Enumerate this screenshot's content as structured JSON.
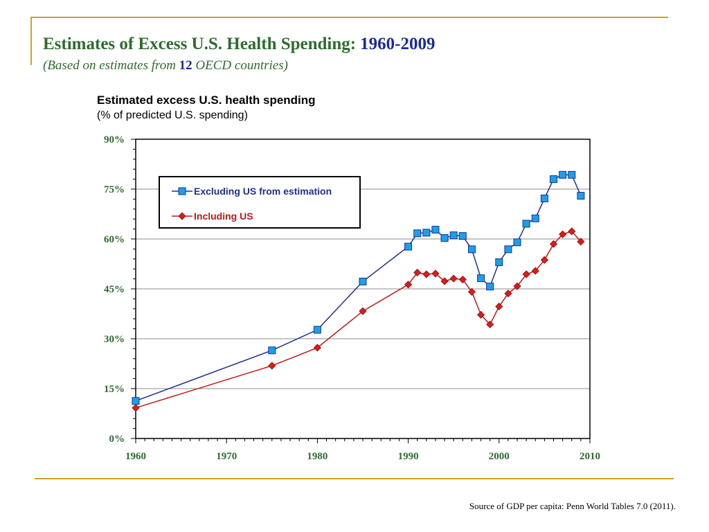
{
  "page": {
    "title": "Estimates of  Excess U.S. Health Spending:",
    "title_years": "1960-2009",
    "subtitle_pre": "(Based on estimates from ",
    "subtitle_num": "12",
    "subtitle_post": " OECD countries)",
    "source": "Source of GDP per capita: Penn World Tables 7.0 (2011)."
  },
  "chart_data": {
    "type": "line",
    "title": "Estimated excess U.S. health spending",
    "subtitle": "(% of predicted U.S. spending)",
    "xlim": [
      1960,
      2010
    ],
    "ylim": [
      0,
      90
    ],
    "x_ticks": [
      "1960",
      "1970",
      "1980",
      "1990",
      "2000",
      "2010"
    ],
    "x_tick_values": [
      1960,
      1970,
      1980,
      1990,
      2000,
      2010
    ],
    "y_ticks": [
      "0%",
      "15%",
      "30%",
      "45%",
      "60%",
      "75%",
      "90%"
    ],
    "y_tick_values": [
      0,
      15,
      30,
      45,
      60,
      75,
      90
    ],
    "grid": "horizontal",
    "legend_position": "top-left",
    "series": [
      {
        "name": "Excluding US from estimation",
        "color": "#1f2f8f",
        "marker_color": "#1aa0e8",
        "marker": "square",
        "points": [
          [
            1960,
            11.3
          ],
          [
            1975,
            26.5
          ],
          [
            1980,
            32.7
          ],
          [
            1985,
            47.2
          ],
          [
            1990,
            57.7
          ],
          [
            1991,
            61.7
          ],
          [
            1992,
            61.9
          ],
          [
            1993,
            62.8
          ],
          [
            1994,
            60.3
          ],
          [
            1995,
            61.1
          ],
          [
            1996,
            60.9
          ],
          [
            1997,
            56.9
          ],
          [
            1998,
            48.2
          ],
          [
            1999,
            45.7
          ],
          [
            2000,
            53.0
          ],
          [
            2001,
            56.9
          ],
          [
            2002,
            59.0
          ],
          [
            2003,
            64.6
          ],
          [
            2004,
            66.2
          ],
          [
            2005,
            72.2
          ],
          [
            2006,
            78.0
          ],
          [
            2007,
            79.3
          ],
          [
            2008,
            79.3
          ],
          [
            2009,
            73.0
          ]
        ]
      },
      {
        "name": "Including US",
        "color": "#c01818",
        "marker_color": "#dd1b1b",
        "marker": "diamond",
        "points": [
          [
            1960,
            9.2
          ],
          [
            1975,
            21.9
          ],
          [
            1980,
            27.3
          ],
          [
            1985,
            38.3
          ],
          [
            1990,
            46.3
          ],
          [
            1991,
            49.9
          ],
          [
            1992,
            49.4
          ],
          [
            1993,
            49.6
          ],
          [
            1994,
            47.3
          ],
          [
            1995,
            48.1
          ],
          [
            1996,
            47.8
          ],
          [
            1997,
            44.1
          ],
          [
            1998,
            37.2
          ],
          [
            1999,
            34.3
          ],
          [
            2000,
            39.7
          ],
          [
            2001,
            43.6
          ],
          [
            2002,
            45.8
          ],
          [
            2003,
            49.4
          ],
          [
            2004,
            50.4
          ],
          [
            2005,
            53.7
          ],
          [
            2006,
            58.5
          ],
          [
            2007,
            61.4
          ],
          [
            2008,
            62.3
          ],
          [
            2009,
            59.2
          ]
        ]
      }
    ]
  }
}
